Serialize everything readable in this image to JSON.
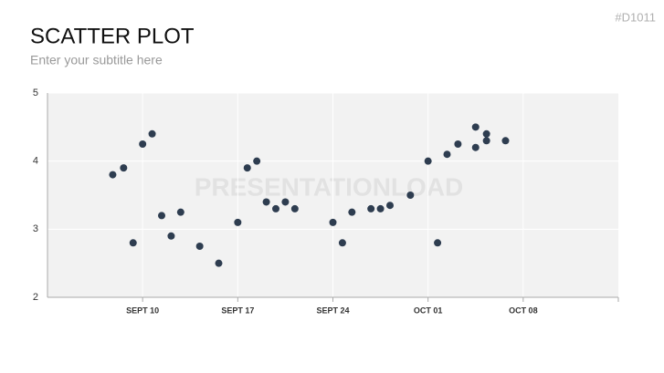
{
  "code": "#D1011",
  "watermark": "PRESENTATIONLOAD",
  "chart_data": {
    "type": "scatter",
    "title": "SCATTER PLOT",
    "subtitle": "Enter your subtitle here",
    "x": [
      7.8,
      8.6,
      9.3,
      10,
      10.7,
      11.4,
      12.1,
      12.8,
      14.2,
      15.6,
      17,
      17.7,
      18.4,
      19.1,
      19.8,
      20.5,
      21.2,
      24,
      24.7,
      25.4,
      26.8,
      27.5,
      28.2,
      29.7,
      31,
      31.7,
      32.4,
      33.2,
      34.5,
      34.5,
      35.3,
      35.3,
      36.7
    ],
    "y": [
      3.8,
      3.9,
      2.8,
      4.25,
      4.4,
      3.2,
      2.9,
      3.25,
      2.75,
      2.5,
      3.1,
      3.9,
      4.0,
      3.4,
      3.3,
      3.4,
      3.3,
      3.1,
      2.8,
      3.25,
      3.3,
      3.3,
      3.35,
      3.5,
      4.0,
      2.8,
      4.1,
      4.25,
      4.5,
      4.2,
      4.4,
      4.3,
      4.3
    ],
    "color": "#2e3d50",
    "xlim": [
      3,
      45
    ],
    "xticks": [
      {
        "value": 10,
        "label": "SEPT 10"
      },
      {
        "value": 17,
        "label": "SEPT 17"
      },
      {
        "value": 24,
        "label": "SEPT 24"
      },
      {
        "value": 31,
        "label": "OCT 01"
      },
      {
        "value": 38,
        "label": "OCT 08"
      }
    ],
    "ylim": [
      2,
      5
    ],
    "yticks": [
      2,
      3,
      4,
      5
    ],
    "grid": true
  }
}
